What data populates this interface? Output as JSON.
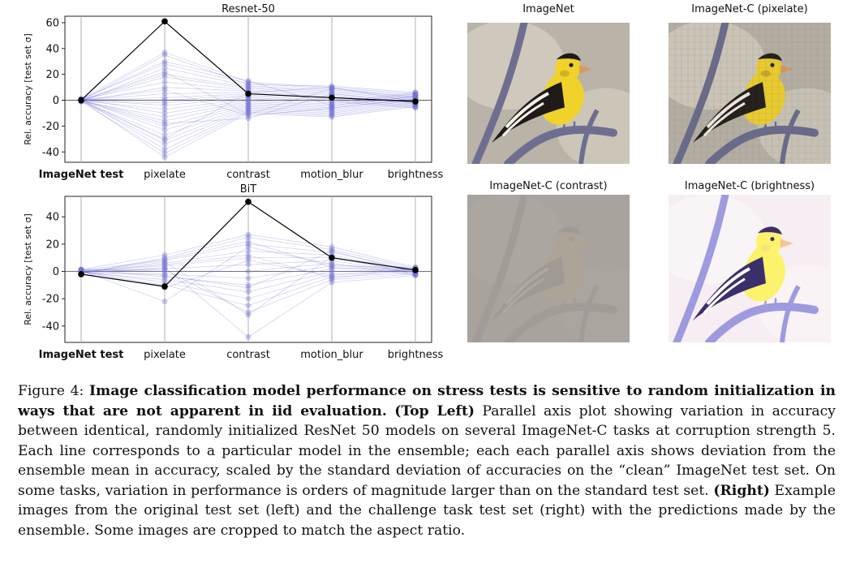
{
  "chart_data": [
    {
      "type": "parallel_coordinates",
      "title": "Resnet-50",
      "ylabel": "Rel. accuracy [test set σ]",
      "categories": [
        "ImageNet test",
        "pixelate",
        "contrast",
        "motion_blur",
        "brightness"
      ],
      "bold_category": "ImageNet test",
      "ylim": [
        -48,
        65
      ],
      "yticks": [
        -40,
        -20,
        0,
        20,
        40,
        60
      ],
      "ensemble_models": [
        [
          0.5,
          37,
          14,
          10,
          5
        ],
        [
          -0.5,
          35,
          12,
          11,
          6
        ],
        [
          1.0,
          28,
          13,
          9,
          4
        ],
        [
          -1.0,
          25,
          11,
          8,
          3
        ],
        [
          0.3,
          20,
          10,
          7,
          2
        ],
        [
          -0.3,
          18,
          9,
          6,
          1
        ],
        [
          0.8,
          14,
          8,
          5,
          0
        ],
        [
          -0.8,
          10,
          7,
          4,
          -1
        ],
        [
          0.2,
          5,
          6,
          3,
          -2
        ],
        [
          -0.2,
          2,
          5,
          2,
          -3
        ],
        [
          0.6,
          0,
          4,
          1,
          -4
        ],
        [
          -0.6,
          -2,
          3,
          0,
          -5
        ],
        [
          0.4,
          -4,
          2,
          -1,
          -6
        ],
        [
          -0.4,
          -7,
          1,
          -2,
          6
        ],
        [
          0.9,
          -10,
          0,
          -3,
          5
        ],
        [
          -0.9,
          -13,
          -1,
          -4,
          4
        ],
        [
          0.1,
          -16,
          -2,
          -5,
          3
        ],
        [
          -0.1,
          -20,
          -3,
          -6,
          2
        ],
        [
          0.7,
          -23,
          -4,
          -7,
          1
        ],
        [
          -0.7,
          -27,
          -5,
          -8,
          0
        ],
        [
          0.5,
          -31,
          -6,
          -9,
          -1
        ],
        [
          -0.5,
          -34,
          -7,
          -10,
          -2
        ],
        [
          1.0,
          -38,
          -8,
          -11,
          -3
        ],
        [
          -1.0,
          -41,
          -9,
          -12,
          -4
        ],
        [
          0.3,
          -44,
          -10,
          -13,
          -5
        ],
        [
          -0.3,
          22,
          -11,
          9,
          2
        ],
        [
          0.2,
          8,
          -12,
          -6,
          1
        ],
        [
          -0.2,
          -18,
          -14,
          5,
          -2
        ],
        [
          0.6,
          30,
          15,
          -4,
          3
        ],
        [
          -0.6,
          -30,
          6,
          10,
          -1
        ]
      ],
      "mean_line": [
        0,
        61,
        5,
        2,
        -1
      ]
    },
    {
      "type": "parallel_coordinates",
      "title": "BiT",
      "ylabel": "Rel. accuracy [test set σ]",
      "categories": [
        "ImageNet test",
        "pixelate",
        "contrast",
        "motion_blur",
        "brightness"
      ],
      "bold_category": "ImageNet test",
      "ylim": [
        -52,
        55
      ],
      "yticks": [
        -40,
        -20,
        0,
        20,
        40
      ],
      "ensemble_models": [
        [
          1.5,
          12,
          27,
          18,
          3
        ],
        [
          -1.5,
          10,
          25,
          16,
          2
        ],
        [
          1.0,
          8,
          20,
          14,
          1
        ],
        [
          -1.0,
          6,
          15,
          12,
          0
        ],
        [
          0.5,
          4,
          10,
          10,
          -1
        ],
        [
          -0.5,
          2,
          5,
          8,
          -2
        ],
        [
          1.2,
          0,
          0,
          6,
          -3
        ],
        [
          -1.2,
          -2,
          -5,
          4,
          3
        ],
        [
          0.8,
          -4,
          -10,
          2,
          2
        ],
        [
          -0.8,
          -6,
          -15,
          0,
          1
        ],
        [
          0.3,
          -8,
          -20,
          -2,
          0
        ],
        [
          -0.3,
          -10,
          -25,
          -4,
          -1
        ],
        [
          1.4,
          1,
          -30,
          -6,
          -2
        ],
        [
          -1.4,
          3,
          -48,
          -8,
          -3
        ],
        [
          0.6,
          -22,
          18,
          5,
          1
        ],
        [
          -0.6,
          5,
          12,
          -5,
          2
        ],
        [
          1.1,
          -3,
          -12,
          15,
          -1
        ],
        [
          -1.1,
          9,
          22,
          3,
          0
        ],
        [
          0.2,
          -12,
          8,
          -3,
          2
        ],
        [
          -0.2,
          7,
          -32,
          11,
          -2
        ]
      ],
      "mean_line": [
        -2,
        -11,
        51,
        10,
        1
      ]
    }
  ],
  "images": [
    {
      "title": "ImageNet",
      "variant": "original"
    },
    {
      "title": "ImageNet-C (pixelate)",
      "variant": "pixelate"
    },
    {
      "title": "ImageNet-C (contrast)",
      "variant": "contrast"
    },
    {
      "title": "ImageNet-C (brightness)",
      "variant": "brightness"
    }
  ],
  "caption": {
    "label": "Figure 4:",
    "bold_title": "Image classification model performance on stress tests is sensitive to random initialization in ways that are not apparent in iid evaluation.",
    "top_left_label": "(Top Left)",
    "top_left_text": "Parallel axis plot showing variation in accuracy between identical, randomly initialized ResNet 50 models on several ImageNet-C tasks at corruption strength 5. Each line corresponds to a particular model in the ensemble; each each parallel axis shows deviation from the ensemble mean in accuracy, scaled by the standard deviation of accuracies on the “clean” ImageNet test set. On some tasks, variation in performance is orders of magnitude larger than on the standard test set.",
    "right_label": "(Right)",
    "right_text": "Example images from the original test set (left) and the challenge task test set (right) with the predictions made by the ensemble. Some images are cropped to match the aspect ratio."
  },
  "colors": {
    "ensemble": "#6f6fd8",
    "mean": "#000000",
    "axis": "#b0b0b0"
  }
}
